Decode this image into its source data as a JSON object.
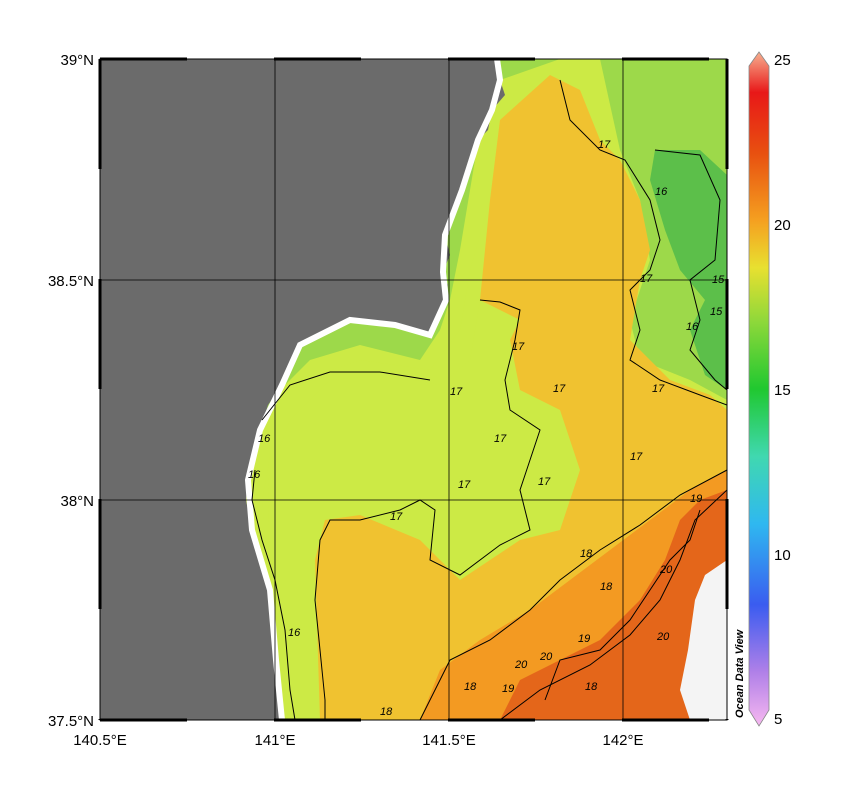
{
  "map": {
    "lat_ticks": [
      "39°N",
      "38.5°N",
      "38°N",
      "37.5°N"
    ],
    "lon_ticks": [
      "140.5°E",
      "141°E",
      "141.5°E",
      "142°E"
    ],
    "contour_labels": [
      "15",
      "15",
      "16",
      "16",
      "16",
      "16",
      "16",
      "17",
      "17",
      "17",
      "17",
      "17",
      "17",
      "17",
      "17",
      "17",
      "17",
      "17",
      "18",
      "18",
      "18",
      "18",
      "18",
      "19",
      "19",
      "19",
      "20",
      "20",
      "20",
      "20"
    ]
  },
  "colorbar": {
    "min": 5,
    "max": 25,
    "ticks": [
      "25",
      "20",
      "15",
      "10",
      "5"
    ]
  },
  "credit": "Ocean Data View",
  "colors": {
    "land": "#6b6b6b",
    "missing": "#f4f4f4",
    "temp_15": "#5cbf4a",
    "temp_16": "#9dd94a",
    "temp_17": "#ccea45",
    "temp_18": "#f0c230",
    "temp_19": "#f39a22",
    "temp_20": "#e4661a"
  }
}
